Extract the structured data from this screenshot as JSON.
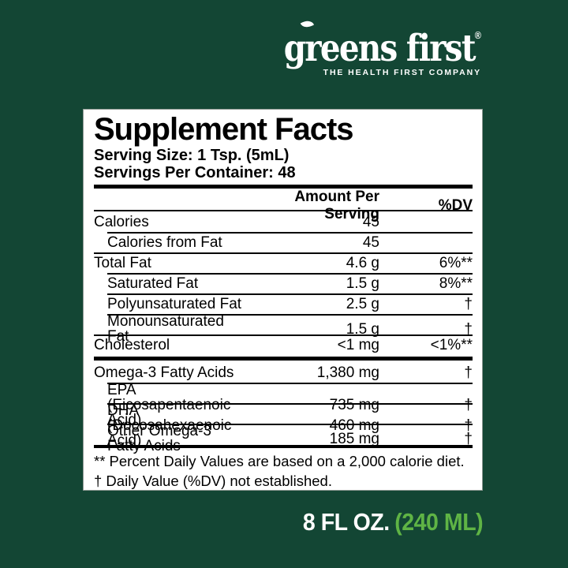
{
  "colors": {
    "background": "#134634",
    "accent_green": "#5fb445",
    "panel": "#ffffff",
    "text": "#000000",
    "logo_text": "#ffffff"
  },
  "brand": {
    "name": "greens first",
    "reg": "®",
    "tagline": "THE HEALTH FIRST COMPANY",
    "leaf_icon": "leaf-icon"
  },
  "label": {
    "title": "Supplement Facts",
    "serving_size": "Serving Size: 1 Tsp. (5mL)",
    "servings_per_container": "Servings Per Container: 48",
    "columns": {
      "amount": "Amount Per Serving",
      "dv": "%DV"
    },
    "rows": [
      {
        "label": "Calories",
        "amount": "45",
        "dv": "",
        "indent": false,
        "rule": "none"
      },
      {
        "label": "Calories from Fat",
        "amount": "45",
        "dv": "",
        "indent": true,
        "rule": "thin-indent"
      },
      {
        "label": "Total Fat",
        "amount": "4.6 g",
        "dv": "6%**",
        "indent": false,
        "rule": "medium-full"
      },
      {
        "label": "Saturated Fat",
        "amount": "1.5 g",
        "dv": "8%**",
        "indent": true,
        "rule": "thin-indent"
      },
      {
        "label": "Polyunsaturated Fat",
        "amount": "2.5 g",
        "dv": "†",
        "indent": true,
        "rule": "thin-indent"
      },
      {
        "label": "Monounsaturated Fat",
        "amount": "1.5 g",
        "dv": "†",
        "indent": true,
        "rule": "thin-indent"
      },
      {
        "label": "Cholesterol",
        "amount": "<1 mg",
        "dv": "<1%**",
        "indent": false,
        "rule": "medium-full"
      },
      {
        "label": "Omega-3 Fatty Acids",
        "amount": "1,380 mg",
        "dv": "†",
        "indent": false,
        "rule": "thick-full"
      },
      {
        "label": "EPA (Eicosapentaenoic Acid)",
        "amount": "735 mg",
        "dv": "†",
        "indent": true,
        "rule": "thin-indent"
      },
      {
        "label": "DHA (Docosahexaenoic Acid)",
        "amount": "460 mg",
        "dv": "†",
        "indent": true,
        "rule": "thin-indent"
      },
      {
        "label": "Other Omega-3 Fatty Acids",
        "amount": "185 mg",
        "dv": "†",
        "indent": true,
        "rule": "thin-indent"
      }
    ],
    "footnotes": [
      "** Percent Daily Values are based on a 2,000 calorie diet.",
      "† Daily Value (%DV) not established."
    ]
  },
  "footer": {
    "size_oz": "8 FL OZ.",
    "size_ml": "(240 ML)"
  }
}
